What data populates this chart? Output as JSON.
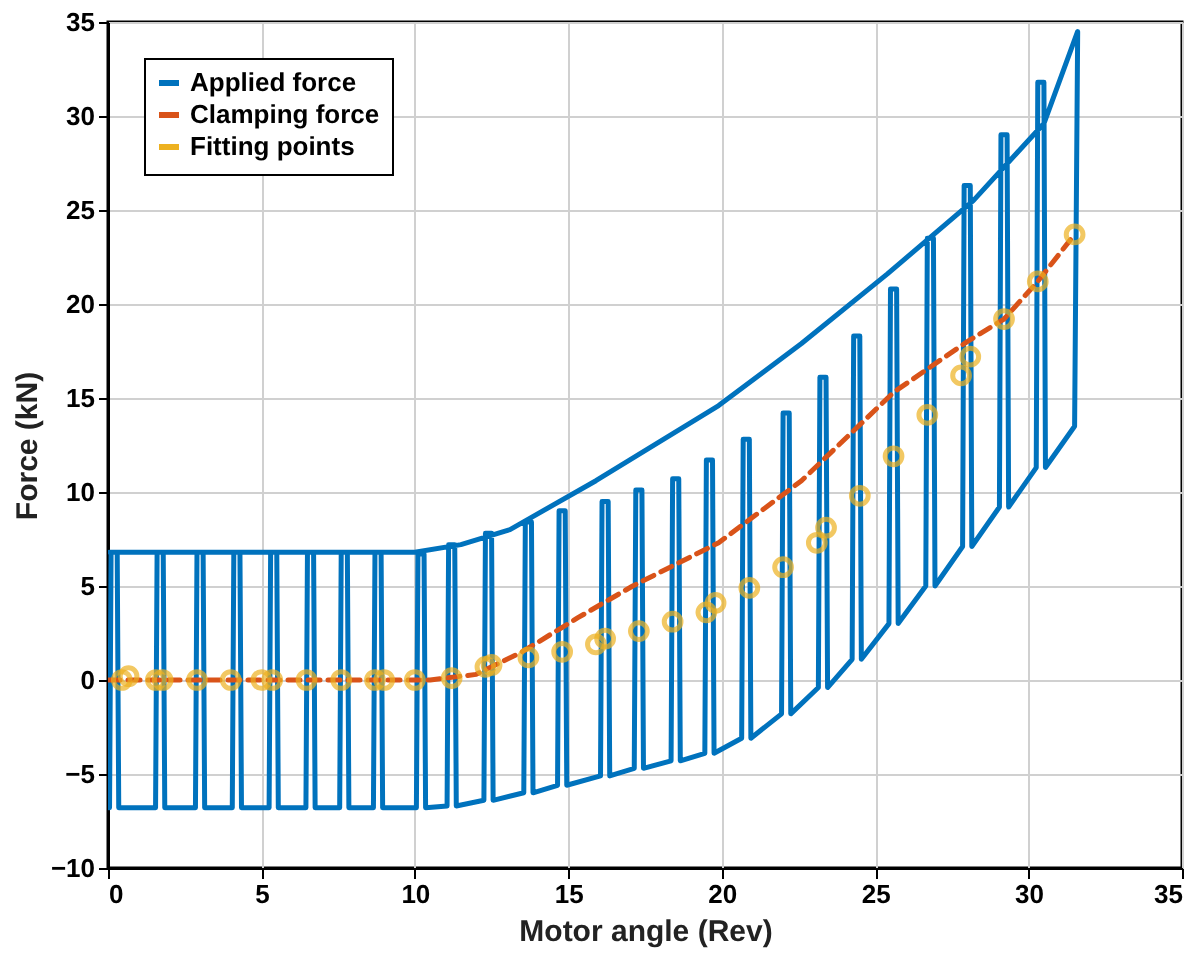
{
  "chart_data": {
    "type": "line",
    "xlabel": "Motor angle (Rev)",
    "ylabel": "Force (kN)",
    "xlim": [
      0,
      35
    ],
    "xticks": [
      0,
      5,
      10,
      15,
      20,
      25,
      30,
      35
    ],
    "ylim": [
      -10,
      35
    ],
    "yticks": [
      -10,
      -5,
      0,
      5,
      10,
      15,
      20,
      25,
      30,
      35
    ],
    "grid": true,
    "legend": "top left",
    "series": [
      {
        "name": "Applied force",
        "type": "line",
        "color": "#0072bd",
        "line_style": "solid",
        "marker": "none",
        "x": [
          0.05,
          0.1,
          0.3,
          0.35,
          1.55,
          1.6,
          1.8,
          1.85,
          2.85,
          2.9,
          3.1,
          3.15,
          4.05,
          4.1,
          4.3,
          4.35,
          5.25,
          5.3,
          5.5,
          5.55,
          6.45,
          6.5,
          6.7,
          6.75,
          7.55,
          7.6,
          7.8,
          7.85,
          8.65,
          8.7,
          8.9,
          8.95,
          10.05,
          10.1,
          10.3,
          10.35,
          11.05,
          11.1,
          11.3,
          11.35,
          12.25,
          12.3,
          12.5,
          12.55,
          13.55,
          13.6,
          13.8,
          13.85,
          14.65,
          14.7,
          14.9,
          14.95,
          16.05,
          16.1,
          16.3,
          16.35,
          17.15,
          17.2,
          17.4,
          17.45,
          18.35,
          18.4,
          18.6,
          18.65,
          19.45,
          19.5,
          19.7,
          19.75,
          20.65,
          20.7,
          20.9,
          20.95,
          21.95,
          22.0,
          22.2,
          22.25,
          23.15,
          23.2,
          23.4,
          23.45,
          24.25,
          24.3,
          24.5,
          24.55,
          25.45,
          25.5,
          25.7,
          25.75,
          26.65,
          26.7,
          26.9,
          26.95,
          27.85,
          27.9,
          28.1,
          28.15,
          29.05,
          29.1,
          29.3,
          29.35,
          30.25,
          30.3,
          30.5,
          30.55,
          31.5,
          31.6,
          30.5,
          28.2,
          25.4,
          22.6,
          19.9,
          17.7,
          15.9,
          13.1,
          11.5,
          10,
          0.05
        ],
        "values": [
          -6.8,
          6.8,
          6.8,
          -6.8,
          -6.8,
          6.8,
          6.8,
          -6.8,
          -6.8,
          6.8,
          6.8,
          -6.8,
          -6.8,
          6.8,
          6.8,
          -6.8,
          -6.8,
          6.8,
          6.8,
          -6.8,
          -6.8,
          6.8,
          6.8,
          -6.8,
          -6.8,
          6.8,
          6.8,
          -6.8,
          -6.8,
          6.8,
          6.8,
          -6.8,
          -6.8,
          6.7,
          6.7,
          -6.8,
          -6.7,
          7.2,
          7.2,
          -6.7,
          -6.4,
          7.8,
          7.8,
          -6.4,
          -6.0,
          8.4,
          8.4,
          -6.0,
          -5.6,
          9.0,
          9.0,
          -5.6,
          -5.1,
          9.5,
          9.5,
          -5.1,
          -4.7,
          10.1,
          10.1,
          -4.7,
          -4.3,
          10.7,
          10.7,
          -4.3,
          -3.9,
          11.7,
          11.7,
          -3.9,
          -3.1,
          12.8,
          12.8,
          -3.1,
          -1.8,
          14.2,
          14.2,
          -1.8,
          -0.4,
          16.1,
          16.1,
          -0.4,
          1.1,
          18.3,
          18.3,
          1.1,
          3.0,
          20.8,
          20.8,
          3.0,
          5.0,
          23.5,
          23.5,
          5.0,
          7.1,
          26.3,
          26.3,
          7.1,
          9.2,
          29.0,
          29.0,
          9.2,
          11.3,
          31.8,
          31.8,
          11.3,
          13.5,
          34.5,
          29.6,
          25.5,
          21.6,
          17.9,
          14.6,
          12.4,
          10.6,
          8.0,
          7.2,
          6.8,
          6.8
        ]
      },
      {
        "name": "Clamping force",
        "type": "line",
        "color": "#d95319",
        "line_style": "dashed",
        "marker": "none",
        "x": [
          0,
          10.5,
          12,
          13.5,
          15.3,
          17.1,
          19.9,
          22.6,
          25.6,
          28.0,
          29.2,
          30.3,
          31.5
        ],
        "values": [
          0,
          0,
          0.3,
          1.5,
          3.3,
          5.0,
          7.3,
          10.6,
          15.3,
          18.0,
          19.2,
          21.2,
          23.7
        ]
      },
      {
        "name": "Fitting points",
        "type": "scatter",
        "color": "#edb120",
        "marker": "circle",
        "x": [
          0.45,
          0.67,
          1.56,
          1.78,
          2.9,
          4.0,
          5.0,
          5.35,
          6.47,
          7.6,
          8.7,
          9.0,
          10.0,
          11.2,
          12.3,
          12.5,
          13.7,
          14.8,
          15.9,
          16.2,
          17.3,
          18.4,
          19.5,
          19.8,
          20.9,
          22.0,
          23.1,
          23.4,
          24.5,
          25.6,
          26.7,
          27.8,
          28.1,
          29.2,
          30.3,
          31.5
        ],
        "values": [
          0,
          0.2,
          0,
          0,
          0,
          0,
          0,
          0,
          0,
          0,
          0,
          0,
          0,
          0.1,
          0.7,
          0.8,
          1.2,
          1.5,
          1.9,
          2.2,
          2.6,
          3.1,
          3.6,
          4.1,
          4.9,
          6.0,
          7.3,
          8.1,
          9.8,
          11.9,
          14.1,
          16.2,
          17.2,
          19.2,
          21.2,
          23.7
        ]
      }
    ]
  }
}
